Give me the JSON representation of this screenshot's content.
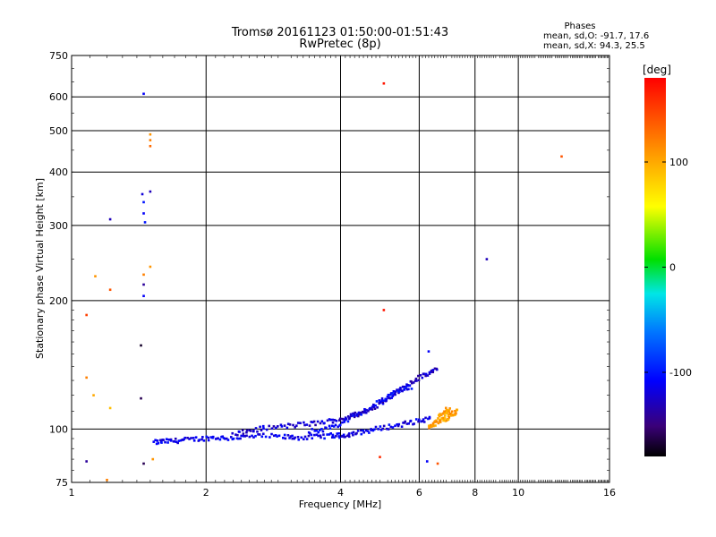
{
  "header": {
    "title_line1": "Tromsø 20161123 01:50:00-01:51:43",
    "title_line2": "RwPretec (8p)",
    "phases_label": "Phases",
    "phases_o": "mean, sd,O: -91.7, 17.6",
    "phases_x": "mean, sd,X:  94.3, 25.5"
  },
  "chart_data": {
    "type": "scatter",
    "xlabel": "Frequency [MHz]",
    "ylabel": "Stationary phase Virtual Height [km]",
    "x_scale": "log",
    "y_scale": "log",
    "xlim": [
      1,
      16
    ],
    "ylim": [
      75,
      750
    ],
    "x_ticks": [
      1,
      2,
      4,
      6,
      8,
      10,
      16
    ],
    "x_tick_labels": [
      "1",
      "2",
      "4",
      "6",
      "8",
      "10",
      "16"
    ],
    "y_ticks": [
      75,
      100,
      200,
      300,
      400,
      500,
      600,
      750
    ],
    "y_tick_labels": [
      "75",
      "100",
      "200",
      "300",
      "400",
      "500",
      "600",
      "750"
    ],
    "grid": true,
    "colorbar": {
      "label": "[deg]",
      "range": [
        -180,
        180
      ],
      "ticks": [
        100,
        0,
        -100
      ],
      "tick_labels": [
        "100",
        "0",
        "-100"
      ]
    },
    "isolated_points": [
      {
        "x": 1.45,
        "y": 610,
        "phase": -110
      },
      {
        "x": 1.5,
        "y": 490,
        "phase": 110
      },
      {
        "x": 1.5,
        "y": 475,
        "phase": 120
      },
      {
        "x": 1.5,
        "y": 460,
        "phase": 130
      },
      {
        "x": 1.44,
        "y": 355,
        "phase": -120
      },
      {
        "x": 1.5,
        "y": 360,
        "phase": -130
      },
      {
        "x": 1.45,
        "y": 340,
        "phase": -100
      },
      {
        "x": 1.45,
        "y": 320,
        "phase": -110
      },
      {
        "x": 1.46,
        "y": 305,
        "phase": -100
      },
      {
        "x": 1.22,
        "y": 310,
        "phase": -130
      },
      {
        "x": 1.5,
        "y": 240,
        "phase": 110
      },
      {
        "x": 1.45,
        "y": 230,
        "phase": 120
      },
      {
        "x": 1.45,
        "y": 218,
        "phase": -140
      },
      {
        "x": 1.45,
        "y": 205,
        "phase": -110
      },
      {
        "x": 1.13,
        "y": 228,
        "phase": 110
      },
      {
        "x": 1.22,
        "y": 212,
        "phase": 140
      },
      {
        "x": 1.08,
        "y": 185,
        "phase": 150
      },
      {
        "x": 1.43,
        "y": 157,
        "phase": -170
      },
      {
        "x": 1.08,
        "y": 132,
        "phase": 120
      },
      {
        "x": 1.12,
        "y": 120,
        "phase": 100
      },
      {
        "x": 1.22,
        "y": 112,
        "phase": 90
      },
      {
        "x": 1.43,
        "y": 118,
        "phase": -160
      },
      {
        "x": 1.08,
        "y": 84,
        "phase": -140
      },
      {
        "x": 1.45,
        "y": 83,
        "phase": -160
      },
      {
        "x": 1.52,
        "y": 85,
        "phase": 110
      },
      {
        "x": 1.2,
        "y": 76,
        "phase": 120
      },
      {
        "x": 5.0,
        "y": 645,
        "phase": 170
      },
      {
        "x": 5.0,
        "y": 190,
        "phase": 170
      },
      {
        "x": 12.5,
        "y": 435,
        "phase": 140
      },
      {
        "x": 8.5,
        "y": 250,
        "phase": -130
      },
      {
        "x": 4.9,
        "y": 86,
        "phase": 160
      },
      {
        "x": 6.25,
        "y": 84,
        "phase": -110
      },
      {
        "x": 6.6,
        "y": 83,
        "phase": 140
      },
      {
        "x": 6.3,
        "y": 152,
        "phase": -110
      }
    ],
    "traces": [
      {
        "phase": -115,
        "points": [
          [
            1.53,
            93
          ],
          [
            1.6,
            93.5
          ],
          [
            1.7,
            93.8
          ],
          [
            1.8,
            94.3
          ],
          [
            1.95,
            95
          ],
          [
            2.1,
            95.5
          ],
          [
            2.25,
            95.2
          ],
          [
            2.45,
            95.8
          ],
          [
            2.7,
            96.3
          ],
          [
            3.0,
            95.8
          ],
          [
            3.2,
            95.5
          ],
          [
            3.5,
            95.8
          ],
          [
            3.8,
            96.5
          ],
          [
            4.0,
            96.5
          ],
          [
            4.2,
            97.2
          ],
          [
            4.5,
            98.5
          ],
          [
            4.8,
            100
          ],
          [
            5.2,
            101.5
          ],
          [
            5.6,
            103
          ],
          [
            6.0,
            104.5
          ],
          [
            6.4,
            106
          ]
        ]
      },
      {
        "phase": -125,
        "points": [
          [
            2.3,
            97
          ],
          [
            2.5,
            99
          ],
          [
            2.7,
            100.5
          ],
          [
            3.0,
            101.5
          ],
          [
            3.3,
            102.5
          ],
          [
            3.6,
            103.5
          ],
          [
            3.9,
            105
          ],
          [
            4.2,
            107
          ],
          [
            4.5,
            109.5
          ],
          [
            4.8,
            113
          ],
          [
            5.1,
            118
          ],
          [
            5.4,
            123
          ],
          [
            5.7,
            128
          ],
          [
            6.0,
            132
          ],
          [
            6.3,
            135
          ],
          [
            6.6,
            138
          ]
        ]
      },
      {
        "phase": -110,
        "points": [
          [
            3.4,
            98.5
          ],
          [
            3.7,
            100
          ],
          [
            4.0,
            103
          ],
          [
            4.3,
            107
          ],
          [
            4.6,
            111
          ],
          [
            4.9,
            116
          ],
          [
            5.2,
            121
          ],
          [
            5.5,
            124
          ],
          [
            5.8,
            126
          ]
        ]
      },
      {
        "phase": 105,
        "points": [
          [
            6.3,
            101
          ],
          [
            6.5,
            103
          ],
          [
            6.7,
            104.5
          ],
          [
            6.9,
            106
          ],
          [
            7.1,
            108
          ],
          [
            7.3,
            110
          ],
          [
            6.6,
            107
          ],
          [
            7.0,
            112
          ],
          [
            6.8,
            109
          ]
        ]
      }
    ]
  }
}
